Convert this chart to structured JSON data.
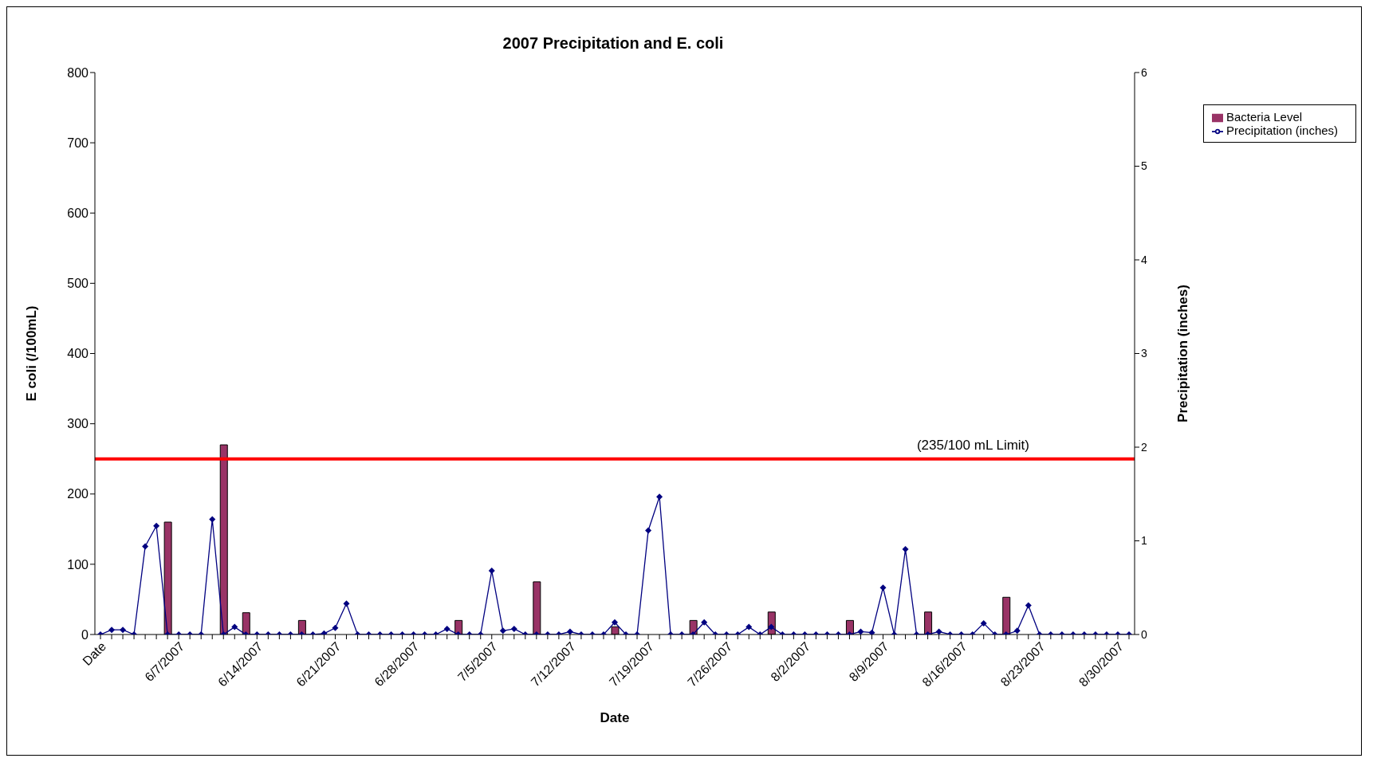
{
  "chart_data": {
    "type": "bar",
    "title": "2007 Precipitation and E. coli",
    "xlabel": "Date",
    "ylabel": "E coli (/100mL)",
    "y2label": "Precipitation (inches)",
    "categories": [
      "Date",
      null,
      null,
      null,
      null,
      null,
      null,
      "6/7/2007",
      null,
      null,
      null,
      null,
      null,
      null,
      "6/14/2007",
      null,
      null,
      null,
      null,
      null,
      null,
      "6/21/2007",
      null,
      null,
      null,
      null,
      null,
      null,
      "6/28/2007",
      null,
      null,
      null,
      null,
      null,
      null,
      "7/5/2007",
      null,
      null,
      null,
      null,
      null,
      null,
      "7/12/2007",
      null,
      null,
      null,
      null,
      null,
      null,
      "7/19/2007",
      null,
      null,
      null,
      null,
      null,
      null,
      "7/26/2007",
      null,
      null,
      null,
      null,
      null,
      null,
      "8/2/2007",
      null,
      null,
      null,
      null,
      null,
      null,
      "8/9/2007",
      null,
      null,
      null,
      null,
      null,
      null,
      "8/16/2007",
      null,
      null,
      null,
      null,
      null,
      null,
      "8/23/2007",
      null,
      null,
      null,
      null,
      null,
      null,
      "8/30/2007",
      null
    ],
    "series": [
      {
        "name": "Bacteria Level",
        "color": "#993366",
        "values": [
          null,
          null,
          null,
          null,
          null,
          null,
          160,
          null,
          null,
          null,
          null,
          270,
          null,
          31,
          null,
          null,
          null,
          null,
          20,
          null,
          null,
          null,
          null,
          null,
          null,
          null,
          null,
          null,
          null,
          null,
          null,
          null,
          20,
          null,
          null,
          null,
          null,
          null,
          null,
          75,
          null,
          null,
          null,
          null,
          null,
          null,
          11,
          null,
          null,
          null,
          null,
          null,
          null,
          20,
          null,
          null,
          null,
          null,
          null,
          null,
          32,
          null,
          null,
          null,
          null,
          null,
          null,
          20,
          null,
          null,
          null,
          null,
          null,
          null,
          32,
          null,
          null,
          null,
          null,
          null,
          null,
          53,
          null,
          null,
          null,
          null,
          null,
          null,
          null,
          null,
          null,
          null,
          null
        ]
      },
      {
        "name": "Precipitation (inches)",
        "type": "line",
        "axis": "y2",
        "color": "#000080",
        "marker": "diamond",
        "values": [
          0,
          0.05,
          0.05,
          0,
          0.94,
          1.16,
          0,
          0,
          0,
          0,
          1.23,
          0,
          0.08,
          0,
          0,
          0,
          0,
          0,
          0,
          0,
          0.01,
          0.07,
          0.33,
          0,
          0,
          0,
          0,
          0,
          0,
          0,
          0,
          0.06,
          0,
          0,
          0,
          0.68,
          0.04,
          0.06,
          0,
          0,
          0,
          0,
          0.03,
          0,
          0,
          0,
          0.13,
          0,
          0,
          1.11,
          1.47,
          0,
          0,
          0,
          0.13,
          0,
          0,
          0,
          0.08,
          0,
          0.08,
          0,
          0,
          0,
          0,
          0,
          0,
          0,
          0.03,
          0.02,
          0.5,
          0,
          0.91,
          0,
          0,
          0.03,
          0,
          0,
          0,
          0.12,
          0,
          0,
          0.04,
          0.31,
          0,
          0,
          0,
          0,
          0,
          0,
          0,
          0,
          0
        ]
      }
    ],
    "ylim": [
      0,
      800
    ],
    "yticks": [
      0,
      100,
      200,
      300,
      400,
      500,
      600,
      700,
      800
    ],
    "y2lim": [
      0,
      6
    ],
    "y2ticks": [
      0,
      1,
      2,
      3,
      4,
      5,
      6
    ],
    "ref_lines": [
      {
        "axis": "y",
        "value": 250,
        "label": "(235/100 mL Limit)",
        "color": "#ff0000"
      }
    ],
    "grid": false,
    "legend": "top right"
  }
}
